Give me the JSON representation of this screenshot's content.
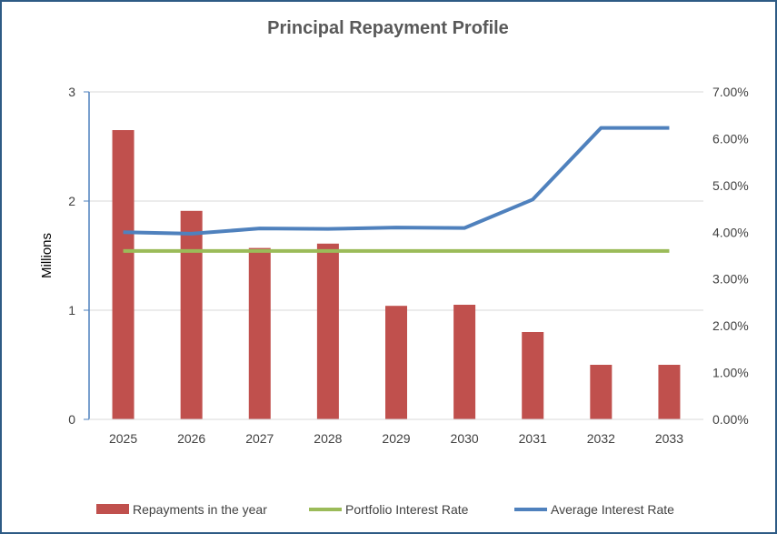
{
  "chart_data": {
    "type": "bar",
    "title": "Principal Repayment Profile",
    "ylabel": "Millions",
    "categories": [
      "2025",
      "2026",
      "2027",
      "2028",
      "2029",
      "2030",
      "2031",
      "2032",
      "2033"
    ],
    "y_ticks": [
      "0",
      "1",
      "2",
      "3"
    ],
    "ylim": [
      0,
      3
    ],
    "y2_ticks": [
      "0.00%",
      "1.00%",
      "2.00%",
      "3.00%",
      "4.00%",
      "5.00%",
      "6.00%",
      "7.00%"
    ],
    "y2lim": [
      0,
      7
    ],
    "grid": true,
    "legend_position": "bottom",
    "series": [
      {
        "name": "Repayments in the year",
        "type": "bar",
        "axis": "left",
        "color": "#c0504d",
        "values": [
          2.65,
          1.91,
          1.57,
          1.61,
          1.04,
          1.05,
          0.8,
          0.5,
          0.5
        ]
      },
      {
        "name": "Portfolio Interest Rate",
        "type": "line",
        "axis": "right",
        "color": "#9bbb59",
        "values": [
          3.6,
          3.6,
          3.6,
          3.6,
          3.6,
          3.6,
          3.6,
          3.6,
          3.6
        ]
      },
      {
        "name": "Average Interest Rate",
        "type": "line",
        "axis": "right",
        "color": "#4f81bd",
        "values": [
          4.0,
          3.97,
          4.08,
          4.07,
          4.1,
          4.09,
          4.7,
          6.23,
          6.23
        ]
      }
    ]
  }
}
